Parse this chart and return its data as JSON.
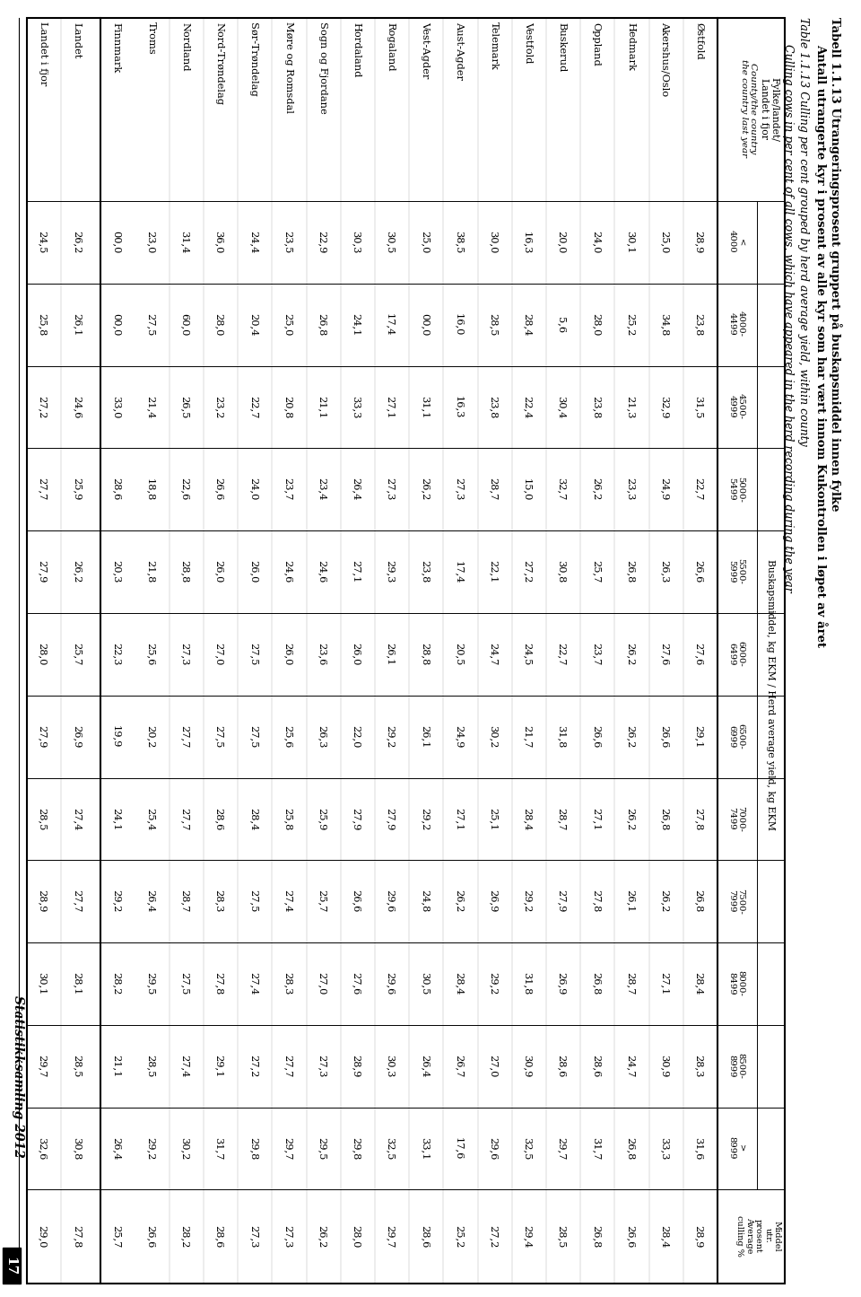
{
  "title_line1": "Tabell 1.1.13 Utrangeringsprosent gruppert på buskapsmiddel innen fylke",
  "title_line2": "Antall utrangerte kyr i prosent av alle kyr som har vært innom Kukontrollen i løpet av året",
  "subtitle_line1": "Table 1.1.13 Culling per cent grouped by herd average yield, within county",
  "subtitle_line2": "Culling cows in per cent of all cows, which have appeared in the herd recording during the year",
  "col_headers": [
    "<\n4000",
    "4000-\n4499",
    "4500-\n4999",
    "5000-\n5499",
    "5500-\n5999",
    "6000-\n6499",
    "6500-\n6999",
    "7000-\n7499",
    "7500-\n7999",
    "8000-\n8499",
    "8500-\n8999",
    ">\n8999"
  ],
  "rows": [
    [
      "Østfold",
      "28,9",
      "23,8",
      "31,5",
      "22,7",
      "26,6",
      "27,6",
      "29,1",
      "27,8",
      "26,8",
      "28,4",
      "28,3",
      "31,6",
      "28,9"
    ],
    [
      "Akershus/Oslo",
      "25,0",
      "34,8",
      "32,9",
      "24,9",
      "26,3",
      "27,6",
      "26,6",
      "26,8",
      "26,2",
      "27,1",
      "30,9",
      "33,3",
      "28,4"
    ],
    [
      "Hedmark",
      "30,1",
      "25,2",
      "21,3",
      "23,3",
      "26,8",
      "26,2",
      "26,2",
      "26,2",
      "26,1",
      "28,7",
      "24,7",
      "26,8",
      "26,6"
    ],
    [
      "Oppland",
      "24,0",
      "28,0",
      "23,8",
      "26,2",
      "25,7",
      "23,7",
      "26,6",
      "27,1",
      "27,8",
      "26,8",
      "28,6",
      "31,7",
      "26,8"
    ],
    [
      "Buskerud",
      "20,0",
      "5,6",
      "30,4",
      "32,7",
      "30,8",
      "22,7",
      "31,8",
      "28,7",
      "27,9",
      "26,9",
      "28,6",
      "29,7",
      "28,5"
    ],
    [
      "Vestfold",
      "16,3",
      "28,4",
      "22,4",
      "15,0",
      "27,2",
      "24,5",
      "21,7",
      "28,4",
      "29,2",
      "31,8",
      "30,9",
      "32,5",
      "29,4"
    ],
    [
      "Telemark",
      "30,0",
      "28,5",
      "23,8",
      "28,7",
      "22,1",
      "24,7",
      "30,2",
      "25,1",
      "26,9",
      "29,2",
      "27,0",
      "29,6",
      "27,2"
    ],
    [
      "Aust-Agder",
      "38,5",
      "16,0",
      "16,3",
      "27,3",
      "17,4",
      "20,5",
      "24,9",
      "27,1",
      "26,2",
      "28,4",
      "26,7",
      "17,6",
      "25,2"
    ],
    [
      "Vest-Agder",
      "25,0",
      "00,0",
      "31,1",
      "26,2",
      "23,8",
      "28,8",
      "26,1",
      "29,2",
      "24,8",
      "30,5",
      "26,4",
      "33,1",
      "28,6"
    ],
    [
      "Rogaland",
      "30,5",
      "17,4",
      "27,1",
      "27,3",
      "29,3",
      "26,1",
      "29,2",
      "27,9",
      "29,6",
      "29,6",
      "30,3",
      "32,5",
      "29,7"
    ],
    [
      "Hordaland",
      "30,3",
      "24,1",
      "33,3",
      "26,4",
      "27,1",
      "26,0",
      "22,0",
      "27,9",
      "26,6",
      "27,6",
      "28,9",
      "29,8",
      "28,0"
    ],
    [
      "Sogn og Fjordane",
      "22,9",
      "26,8",
      "21,1",
      "23,4",
      "24,6",
      "23,6",
      "26,3",
      "25,9",
      "25,7",
      "27,0",
      "27,3",
      "29,5",
      "26,2"
    ],
    [
      "Møre og Romsdal",
      "23,5",
      "25,0",
      "20,8",
      "23,7",
      "24,6",
      "26,0",
      "25,6",
      "25,8",
      "27,4",
      "28,3",
      "27,7",
      "29,7",
      "27,3"
    ],
    [
      "Sør-Trøndelag",
      "24,4",
      "20,4",
      "22,7",
      "24,0",
      "26,0",
      "27,5",
      "27,5",
      "28,4",
      "27,5",
      "27,4",
      "27,2",
      "29,8",
      "27,3"
    ],
    [
      "Nord-Trøndelag",
      "36,0",
      "28,0",
      "23,2",
      "26,6",
      "26,0",
      "27,0",
      "27,5",
      "28,6",
      "28,3",
      "27,8",
      "29,1",
      "31,7",
      "28,6"
    ],
    [
      "Nordland",
      "31,4",
      "60,0",
      "26,5",
      "22,6",
      "28,8",
      "27,3",
      "27,7",
      "27,7",
      "28,7",
      "27,5",
      "27,4",
      "30,2",
      "28,2"
    ],
    [
      "Troms",
      "23,0",
      "27,5",
      "21,4",
      "18,8",
      "21,8",
      "25,6",
      "20,2",
      "25,4",
      "26,4",
      "29,5",
      "28,5",
      "29,2",
      "26,6"
    ],
    [
      "Finnmark",
      "00,0",
      "00,0",
      "33,0",
      "28,6",
      "20,3",
      "22,3",
      "19,9",
      "24,1",
      "29,2",
      "28,2",
      "21,1",
      "26,4",
      "25,7"
    ],
    [
      "Landet",
      "26,2",
      "26,1",
      "24,6",
      "25,9",
      "26,2",
      "25,7",
      "26,9",
      "27,4",
      "27,7",
      "28,1",
      "28,5",
      "30,8",
      "27,8"
    ],
    [
      "Landet i fjor",
      "24,5",
      "25,8",
      "27,2",
      "27,7",
      "27,9",
      "28,0",
      "27,9",
      "28,5",
      "28,9",
      "30,1",
      "29,7",
      "32,6",
      "29,0"
    ]
  ],
  "separator_after_row": 17,
  "background_color": "#ffffff",
  "text_color": "#000000",
  "border_color": "#000000",
  "footer_text": "Statistikksamling 2012",
  "footer_page": "17"
}
